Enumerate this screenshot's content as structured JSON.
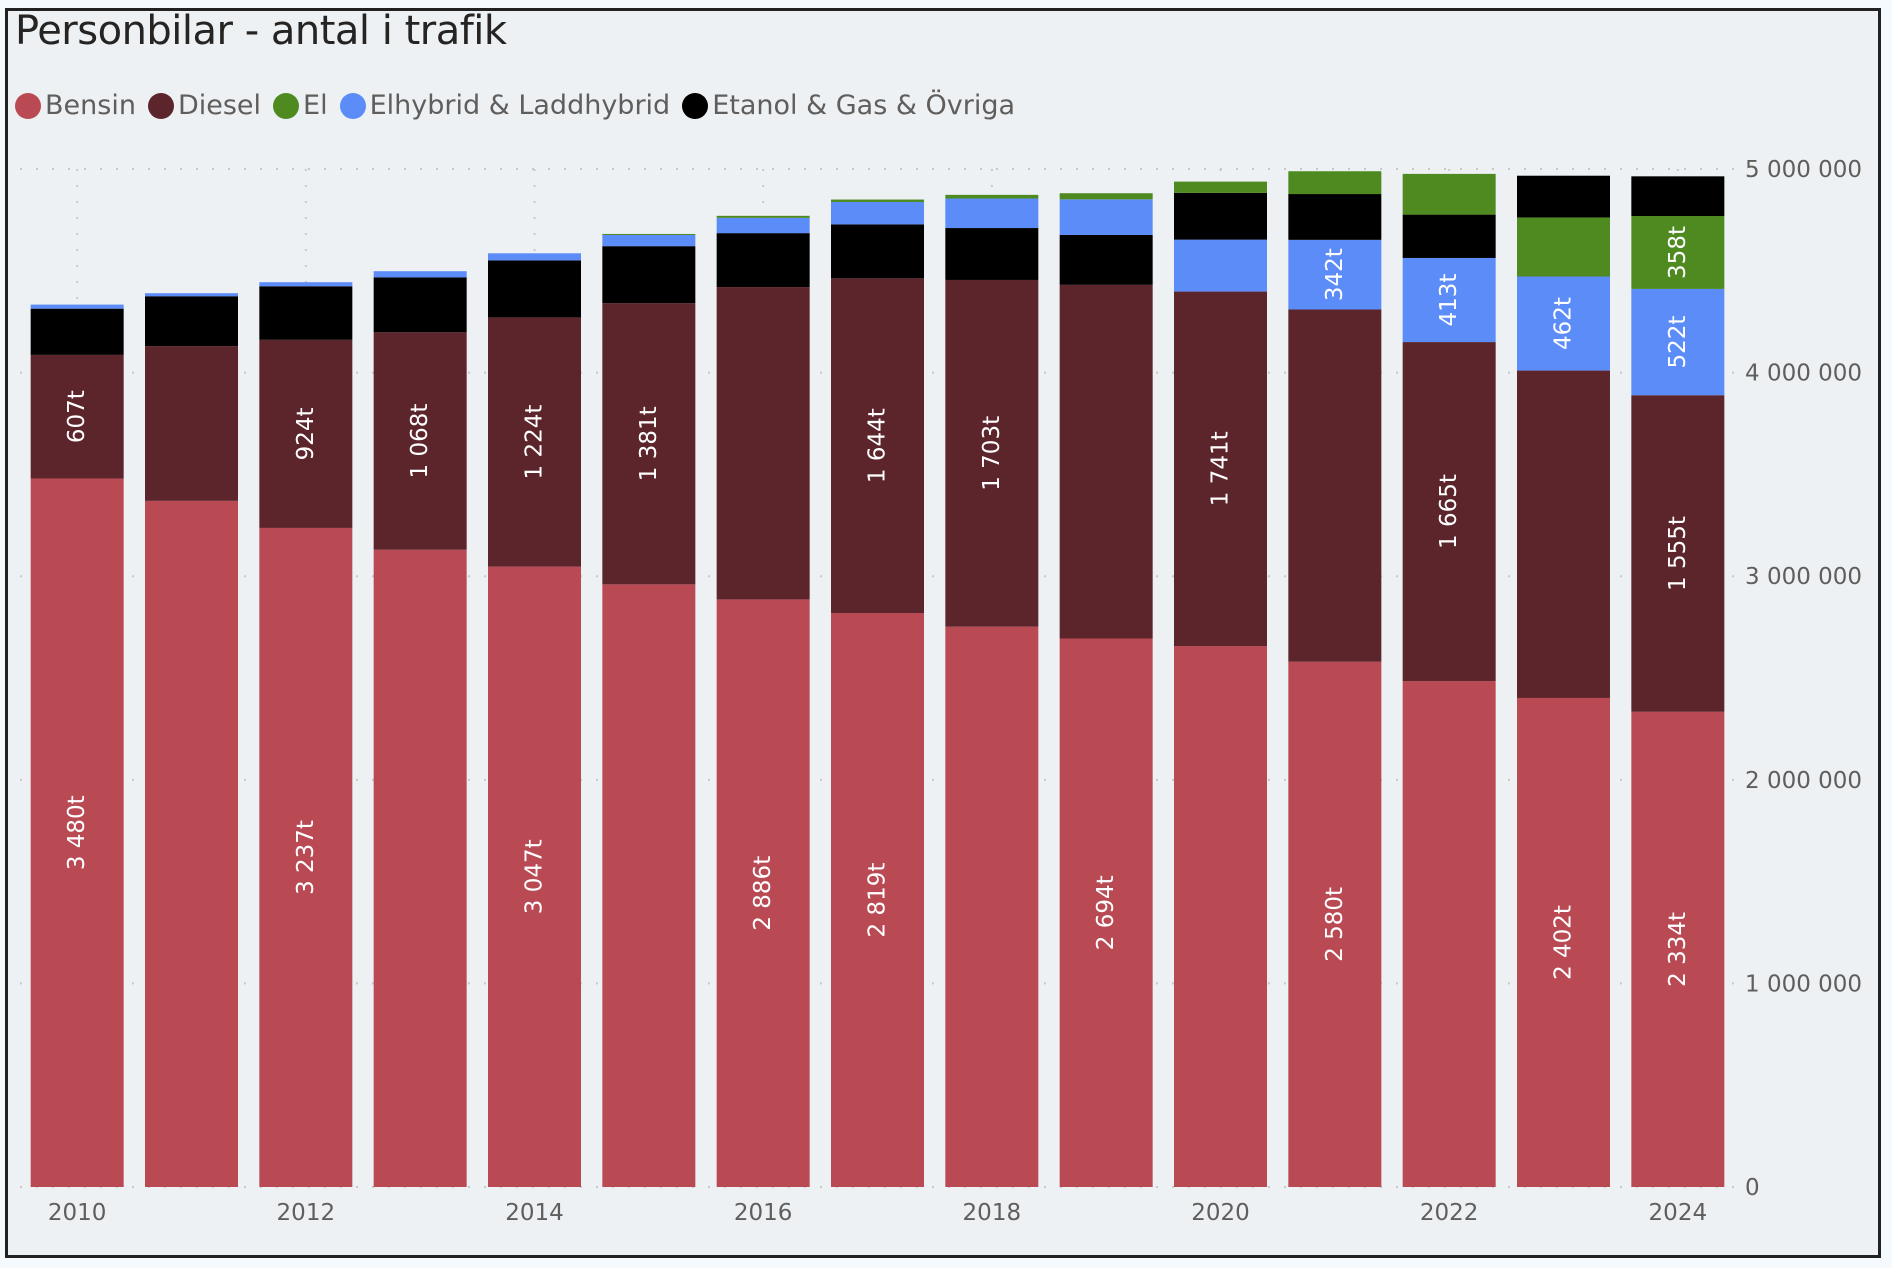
{
  "chart_data": {
    "type": "bar",
    "stacked": true,
    "title": "Personbilar - antal i trafik",
    "xlabel": "",
    "ylabel": "",
    "ylim": [
      0,
      5000000
    ],
    "y_ticks": [
      0,
      1000000,
      2000000,
      3000000,
      4000000,
      5000000
    ],
    "y_tick_labels": [
      "0",
      "1 000 000",
      "2 000 000",
      "3 000 000",
      "4 000 000",
      "5 000 000"
    ],
    "y_axis_position": "right",
    "legend_position": "top-left",
    "categories": [
      2010,
      2011,
      2012,
      2013,
      2014,
      2015,
      2016,
      2017,
      2018,
      2019,
      2020,
      2021,
      2022,
      2023,
      2024
    ],
    "x_tick_labels": [
      "2010",
      "",
      "2012",
      "",
      "2014",
      "",
      "2016",
      "",
      "2018",
      "",
      "2020",
      "",
      "2022",
      "",
      "2024"
    ],
    "series": [
      {
        "name": "Bensin",
        "color": "#b94a54",
        "values": [
          3480000,
          3370000,
          3237000,
          3130000,
          3047000,
          2960000,
          2886000,
          2819000,
          2752000,
          2694000,
          2657000,
          2580000,
          2485000,
          2402000,
          2334000
        ],
        "labels": [
          "3 480t",
          "",
          "3 237t",
          "",
          "3 047t",
          "",
          "2 886t",
          "2 819t",
          "",
          "2 694t",
          "",
          "2 580t",
          "",
          "2 402t",
          "2 334t"
        ]
      },
      {
        "name": "Diesel",
        "color": "#5c252b",
        "values": [
          607000,
          760000,
          924000,
          1068000,
          1224000,
          1381000,
          1534000,
          1644000,
          1703000,
          1737000,
          1741000,
          1730000,
          1665000,
          1608000,
          1555000
        ],
        "labels": [
          "607t",
          "",
          "924t",
          "1 068t",
          "1 224t",
          "1 381t",
          "",
          "1 644t",
          "1 703t",
          "",
          "1 741t",
          "",
          "1 665t",
          "",
          "1 555t"
        ]
      },
      {
        "name": "Elhybrid & Laddhybrid",
        "color": "#5b8cf7",
        "values": [
          20000,
          15000,
          20000,
          30000,
          35000,
          55000,
          75000,
          110000,
          145000,
          175000,
          255000,
          342000,
          413000,
          462000,
          522000
        ],
        "labels": [
          "",
          "",
          "",
          "",
          "",
          "",
          "",
          "",
          "",
          "",
          "",
          "342t",
          "413t",
          "462t",
          "522t"
        ]
      },
      {
        "name": "Etanol & Gas & Övriga",
        "color": "#000000",
        "values": [
          227000,
          245000,
          263000,
          270000,
          280000,
          280000,
          265000,
          265000,
          255000,
          245000,
          230000,
          225000,
          213000,
          205000,
          195000
        ],
        "labels": [
          "",
          "",
          "",
          "",
          "",
          "",
          "",
          "",
          "",
          "",
          "",
          "",
          "",
          "",
          ""
        ]
      },
      {
        "name": "El",
        "color": "#4e8a20",
        "values": [
          0,
          0,
          0,
          0,
          0,
          5000,
          10000,
          12000,
          18000,
          30000,
          55000,
          112000,
          200000,
          290000,
          358000
        ],
        "labels": [
          "",
          "",
          "",
          "",
          "",
          "",
          "",
          "",
          "",
          "",
          "",
          "",
          "",
          "",
          "358t"
        ]
      }
    ],
    "stack_order_note_per_category": "bottom-to-top",
    "stack_order": [
      [
        "Bensin",
        "Diesel",
        "Etanol & Gas & Övriga",
        "Elhybrid & Laddhybrid",
        "El"
      ],
      [
        "Bensin",
        "Diesel",
        "Etanol & Gas & Övriga",
        "Elhybrid & Laddhybrid",
        "El"
      ],
      [
        "Bensin",
        "Diesel",
        "Etanol & Gas & Övriga",
        "Elhybrid & Laddhybrid",
        "El"
      ],
      [
        "Bensin",
        "Diesel",
        "Etanol & Gas & Övriga",
        "Elhybrid & Laddhybrid",
        "El"
      ],
      [
        "Bensin",
        "Diesel",
        "Etanol & Gas & Övriga",
        "Elhybrid & Laddhybrid",
        "El"
      ],
      [
        "Bensin",
        "Diesel",
        "Etanol & Gas & Övriga",
        "Elhybrid & Laddhybrid",
        "El"
      ],
      [
        "Bensin",
        "Diesel",
        "Etanol & Gas & Övriga",
        "Elhybrid & Laddhybrid",
        "El"
      ],
      [
        "Bensin",
        "Diesel",
        "Etanol & Gas & Övriga",
        "Elhybrid & Laddhybrid",
        "El"
      ],
      [
        "Bensin",
        "Diesel",
        "Etanol & Gas & Övriga",
        "Elhybrid & Laddhybrid",
        "El"
      ],
      [
        "Bensin",
        "Diesel",
        "Etanol & Gas & Övriga",
        "Elhybrid & Laddhybrid",
        "El"
      ],
      [
        "Bensin",
        "Diesel",
        "Elhybrid & Laddhybrid",
        "Etanol & Gas & Övriga",
        "El"
      ],
      [
        "Bensin",
        "Diesel",
        "Elhybrid & Laddhybrid",
        "Etanol & Gas & Övriga",
        "El"
      ],
      [
        "Bensin",
        "Diesel",
        "Elhybrid & Laddhybrid",
        "Etanol & Gas & Övriga",
        "El"
      ],
      [
        "Bensin",
        "Diesel",
        "Elhybrid & Laddhybrid",
        "El",
        "Etanol & Gas & Övriga"
      ],
      [
        "Bensin",
        "Diesel",
        "Elhybrid & Laddhybrid",
        "El",
        "Etanol & Gas & Övriga"
      ]
    ]
  },
  "legend": [
    {
      "label": "Bensin",
      "color": "#b94a54"
    },
    {
      "label": "Diesel",
      "color": "#5c252b"
    },
    {
      "label": "El",
      "color": "#4e8a20"
    },
    {
      "label": "Elhybrid & Laddhybrid",
      "color": "#5b8cf7"
    },
    {
      "label": "Etanol & Gas & Övriga",
      "color": "#000000"
    }
  ]
}
